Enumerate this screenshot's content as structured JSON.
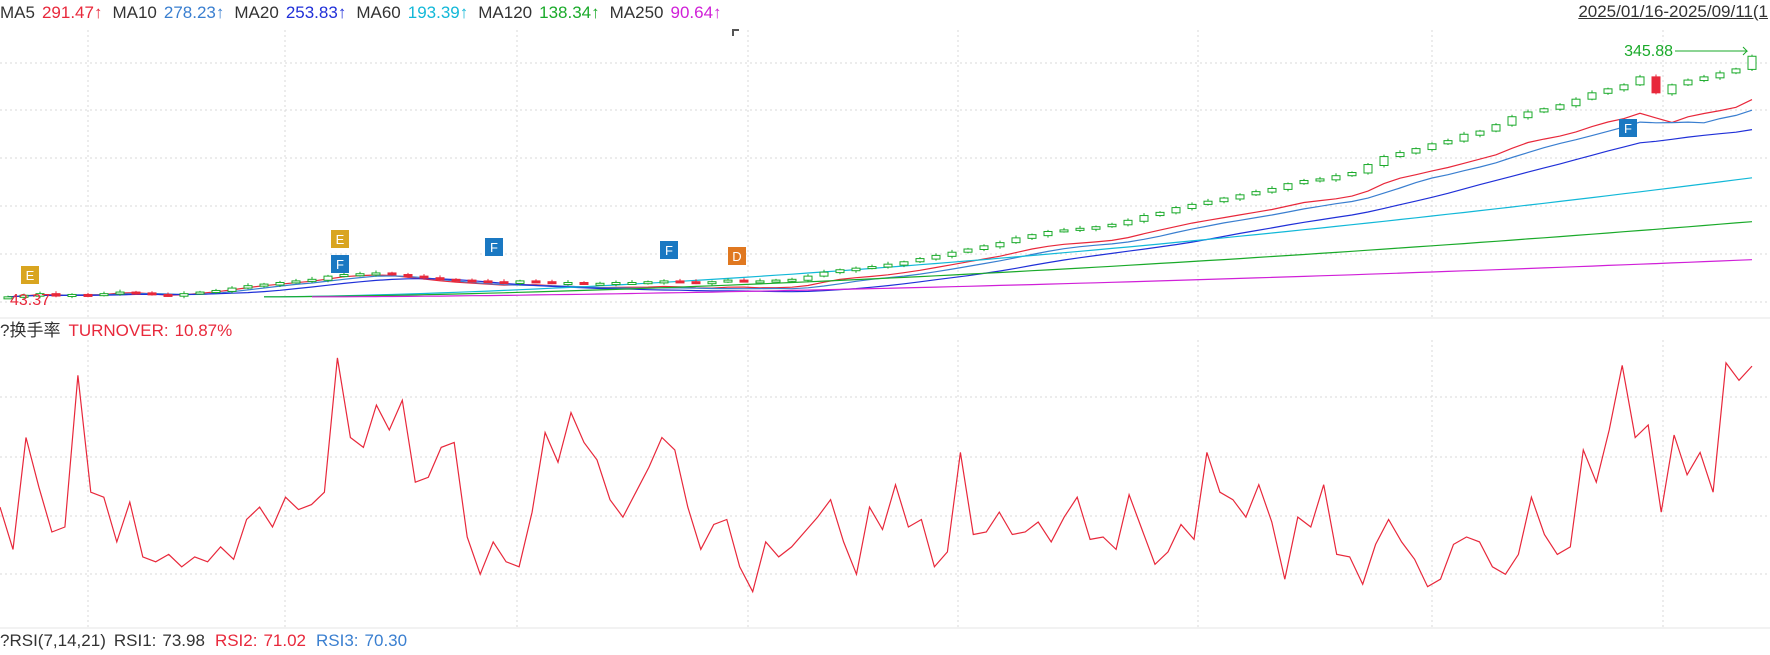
{
  "header": {
    "ma": [
      {
        "name": "MA5",
        "value": "291.47",
        "arrow": "↑",
        "color": "#e8283b"
      },
      {
        "name": "MA10",
        "value": "278.23",
        "arrow": "↑",
        "color": "#3a7fd0"
      },
      {
        "name": "MA20",
        "value": "253.83",
        "arrow": "↑",
        "color": "#2030d8"
      },
      {
        "name": "MA60",
        "value": "193.39",
        "arrow": "↑",
        "color": "#12b8d8"
      },
      {
        "name": "MA120",
        "value": "138.34",
        "arrow": "↑",
        "color": "#1aaa2a"
      },
      {
        "name": "MA250",
        "value": "90.64",
        "arrow": "↑",
        "color": "#d020d8"
      }
    ],
    "date_range": "2025/01/16-2025/09/11(1"
  },
  "price_panel": {
    "high_label": "345.88",
    "low_label": "43.37",
    "markers": [
      {
        "letter": "E",
        "color": "#d9a520"
      },
      {
        "letter": "E",
        "color": "#d9a520"
      },
      {
        "letter": "F",
        "color": "#1a78c2"
      },
      {
        "letter": "F",
        "color": "#1a78c2"
      },
      {
        "letter": "F",
        "color": "#1a78c2"
      },
      {
        "letter": "D",
        "color": "#e07820"
      },
      {
        "letter": "F",
        "color": "#1a78c2"
      }
    ]
  },
  "turnover_panel": {
    "help": "?",
    "name": "换手率",
    "label": "TURNOVER:",
    "value": "10.87%",
    "color": "#e8283b"
  },
  "rsi_panel": {
    "help": "?",
    "title": "RSI(7,14,21)",
    "rsi1_label": "RSI1:",
    "rsi1_value": "73.98",
    "rsi2_label": "RSI2:",
    "rsi2_value": "71.02",
    "rsi3_label": "RSI3:",
    "rsi3_value": "70.30",
    "colors": {
      "rsi1": "#333333",
      "rsi2": "#e8283b",
      "rsi3": "#3a7fd0"
    }
  },
  "chart_data": {
    "type": "line",
    "panels": [
      "candlestick price with moving averages",
      "turnover rate (%)"
    ],
    "price": {
      "low": 43.37,
      "high": 345.88,
      "close_approx": [
        44,
        46,
        48,
        45,
        47,
        46,
        48,
        50,
        49,
        47,
        46,
        48,
        50,
        52,
        55,
        58,
        60,
        62,
        64,
        66,
        70,
        72,
        73,
        74,
        72,
        70,
        68,
        66,
        65,
        64,
        63,
        62,
        64,
        63,
        62,
        62,
        61,
        61,
        62,
        62,
        63,
        64,
        63,
        62,
        63,
        65,
        64,
        64,
        65,
        66,
        70,
        75,
        78,
        80,
        82,
        85,
        88,
        92,
        96,
        100,
        104,
        108,
        112,
        118,
        122,
        126,
        128,
        130,
        132,
        135,
        140,
        146,
        150,
        156,
        160,
        164,
        168,
        172,
        176,
        180,
        186,
        190,
        192,
        196,
        200,
        210,
        220,
        225,
        230,
        236,
        240,
        248,
        252,
        260,
        270,
        276,
        280,
        285,
        292,
        300,
        305,
        310,
        320,
        300,
        310,
        316,
        320,
        325,
        330,
        345.88
      ]
    },
    "moving_averages": [
      {
        "name": "MA5",
        "last": 291.47
      },
      {
        "name": "MA10",
        "last": 278.23
      },
      {
        "name": "MA20",
        "last": 253.83
      },
      {
        "name": "MA60",
        "last": 193.39
      },
      {
        "name": "MA120",
        "last": 138.34
      },
      {
        "name": "MA250",
        "last": 90.64
      }
    ],
    "turnover": {
      "last": 10.87,
      "values": [
        5.2,
        3.5,
        8.0,
        6.0,
        4.2,
        4.4,
        10.5,
        5.8,
        5.6,
        3.8,
        5.4,
        3.2,
        3.0,
        3.3,
        2.8,
        3.2,
        3.0,
        3.6,
        3.1,
        4.7,
        5.2,
        4.4,
        5.6,
        5.1,
        5.3,
        5.8,
        11.2,
        8.0,
        7.6,
        9.3,
        8.3,
        9.5,
        6.2,
        6.4,
        7.6,
        7.8,
        4.0,
        2.5,
        3.8,
        3.0,
        2.8,
        5.0,
        8.2,
        7.0,
        9.0,
        7.8,
        7.1,
        5.5,
        4.8,
        5.8,
        6.8,
        8.0,
        7.5,
        5.2,
        3.5,
        4.5,
        4.7,
        2.8,
        1.8,
        3.8,
        3.2,
        3.6,
        4.2,
        4.8,
        5.5,
        3.8,
        2.5,
        5.2,
        4.3,
        6.1,
        4.4,
        4.7,
        2.8,
        3.4,
        7.4,
        4.1,
        4.2,
        5.0,
        4.1,
        4.2,
        4.6,
        3.8,
        4.8,
        5.6,
        3.9,
        4.0,
        3.5,
        5.7,
        4.3,
        2.9,
        3.4,
        4.5,
        3.9,
        7.4,
        5.8,
        5.5,
        4.8,
        6.1,
        4.6,
        2.3,
        4.8,
        4.4,
        6.1,
        3.3,
        3.2,
        2.1,
        3.7,
        4.7,
        3.8,
        3.1,
        2.0,
        2.3,
        3.7,
        4.0,
        3.8,
        2.8,
        2.5,
        3.3,
        5.6,
        4.1,
        3.3,
        3.6,
        7.5,
        6.2,
        8.3,
        10.9,
        8.0,
        8.5,
        5.0,
        8.1,
        6.5,
        7.4,
        5.8,
        11.0,
        10.3,
        10.87
      ]
    }
  }
}
